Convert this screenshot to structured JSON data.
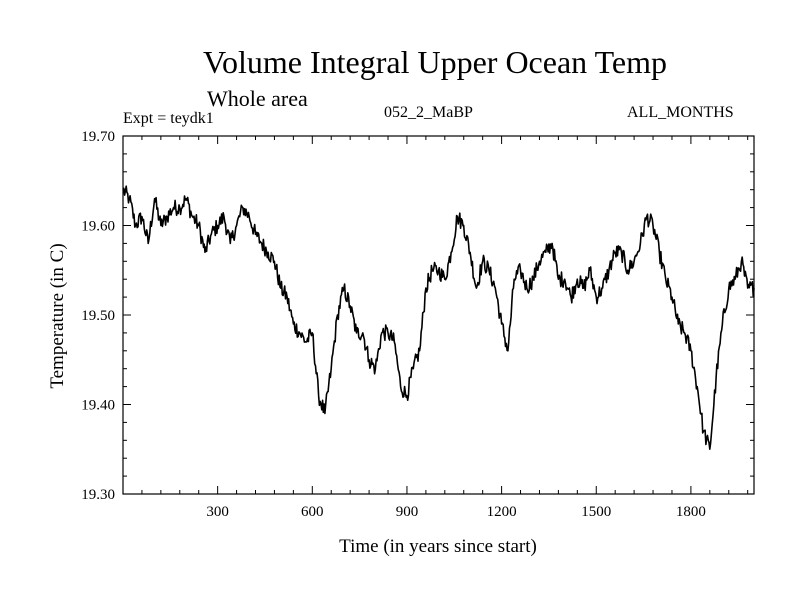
{
  "chart_data": {
    "type": "line",
    "title": "Volume Integral Upper Ocean Temp",
    "subtitle": "Whole area",
    "annotations": {
      "experiment": "Expt = teydk1",
      "run": "052_2_MaBP",
      "months": "ALL_MONTHS"
    },
    "xlabel": "Time (in years since start)",
    "ylabel": "Temperature (in C)",
    "xlim": [
      0,
      2000
    ],
    "ylim": [
      19.3,
      19.7
    ],
    "x_ticks": [
      300,
      600,
      900,
      1200,
      1500,
      1800
    ],
    "x_tick_labels": [
      "300",
      "600",
      "900",
      "1200",
      "1500",
      "1800"
    ],
    "y_ticks": [
      19.3,
      19.4,
      19.5,
      19.6,
      19.7
    ],
    "y_tick_labels": [
      "19.30",
      "19.40",
      "19.50",
      "19.60",
      "19.70"
    ],
    "series": [
      {
        "name": "Volume integral upper ocean temperature",
        "x": [
          0,
          20,
          40,
          60,
          80,
          100,
          120,
          140,
          160,
          180,
          200,
          220,
          240,
          260,
          280,
          300,
          320,
          340,
          360,
          380,
          400,
          420,
          440,
          460,
          480,
          500,
          520,
          540,
          560,
          580,
          600,
          620,
          640,
          660,
          680,
          700,
          720,
          740,
          760,
          780,
          800,
          820,
          840,
          860,
          880,
          900,
          920,
          940,
          960,
          980,
          1000,
          1020,
          1040,
          1060,
          1080,
          1100,
          1120,
          1140,
          1160,
          1180,
          1200,
          1220,
          1240,
          1260,
          1280,
          1300,
          1320,
          1340,
          1360,
          1380,
          1400,
          1420,
          1440,
          1460,
          1480,
          1500,
          1520,
          1540,
          1560,
          1580,
          1600,
          1620,
          1640,
          1660,
          1680,
          1700,
          1720,
          1740,
          1760,
          1780,
          1800,
          1820,
          1840,
          1860,
          1880,
          1900,
          1920,
          1940,
          1960,
          1980,
          2000
        ],
        "values": [
          19.64,
          19.63,
          19.6,
          19.61,
          19.58,
          19.63,
          19.6,
          19.61,
          19.62,
          19.62,
          19.63,
          19.61,
          19.6,
          19.57,
          19.59,
          19.6,
          19.61,
          19.58,
          19.6,
          19.62,
          19.61,
          19.59,
          19.58,
          19.57,
          19.56,
          19.53,
          19.52,
          19.49,
          19.48,
          19.47,
          19.48,
          19.41,
          19.39,
          19.44,
          19.5,
          19.53,
          19.51,
          19.48,
          19.48,
          19.45,
          19.44,
          19.48,
          19.48,
          19.47,
          19.42,
          19.41,
          19.44,
          19.46,
          19.53,
          19.55,
          19.55,
          19.54,
          19.57,
          19.61,
          19.6,
          19.57,
          19.53,
          19.56,
          19.55,
          19.53,
          19.49,
          19.46,
          19.54,
          19.55,
          19.53,
          19.54,
          19.56,
          19.57,
          19.58,
          19.54,
          19.54,
          19.52,
          19.54,
          19.53,
          19.55,
          19.52,
          19.53,
          19.55,
          19.57,
          19.57,
          19.55,
          19.56,
          19.58,
          19.61,
          19.6,
          19.57,
          19.54,
          19.52,
          19.49,
          19.48,
          19.46,
          19.42,
          19.37,
          19.35,
          19.43,
          19.49,
          19.53,
          19.54,
          19.56,
          19.53,
          19.53
        ]
      }
    ]
  }
}
